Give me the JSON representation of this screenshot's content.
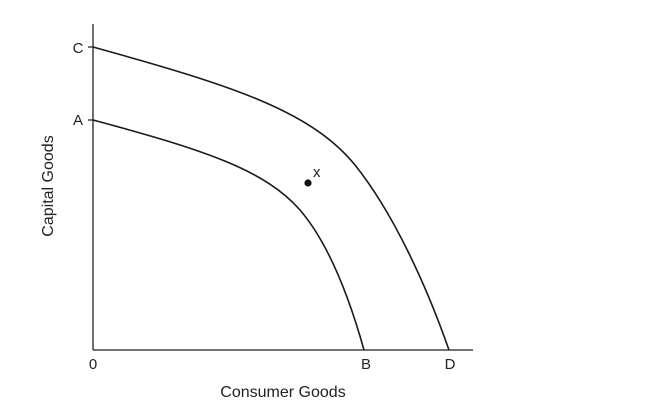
{
  "chart_data": {
    "type": "line",
    "xlabel": "Consumer Goods",
    "ylabel": "Capital Goods",
    "origin_label": "0",
    "curves": [
      {
        "name": "AB",
        "y_intercept_label": "A",
        "x_intercept_label": "B"
      },
      {
        "name": "CD",
        "y_intercept_label": "C",
        "x_intercept_label": "D"
      }
    ],
    "points": [
      {
        "label": "x"
      }
    ]
  }
}
